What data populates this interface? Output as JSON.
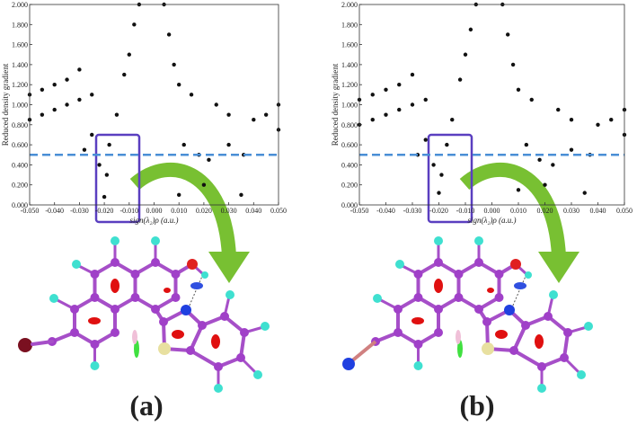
{
  "chart_data": [
    {
      "type": "scatter",
      "ylabel": "Reduced density gradient",
      "xlabel": "sign(λ₂)ρ (a.u.)",
      "color": "#111111",
      "xlim": [
        -0.05,
        0.05
      ],
      "ylim": [
        0,
        2
      ],
      "reference_line": 0.5,
      "reference_color": "#4a8fd6",
      "xticks": [
        {
          "value": -0.05,
          "label": "-0.050"
        },
        {
          "value": -0.04,
          "label": "-0.040"
        },
        {
          "value": -0.03,
          "label": "-0.030"
        },
        {
          "value": -0.02,
          "label": "-0.020"
        },
        {
          "value": -0.01,
          "label": "-0.010"
        },
        {
          "value": 0,
          "label": "0.000"
        },
        {
          "value": 0.01,
          "label": "0.010"
        },
        {
          "value": 0.02,
          "label": "0.020"
        },
        {
          "value": 0.03,
          "label": "0.030"
        },
        {
          "value": 0.04,
          "label": "0.040"
        },
        {
          "value": 0.05,
          "label": "0.050"
        }
      ],
      "yticks": [
        {
          "value": 0,
          "label": "0.000"
        },
        {
          "value": 0.2,
          "label": "0.200"
        },
        {
          "value": 0.4,
          "label": "0.400"
        },
        {
          "value": 0.6,
          "label": "0.600"
        },
        {
          "value": 0.8,
          "label": "0.800"
        },
        {
          "value": 1,
          "label": "1.000"
        },
        {
          "value": 1.2,
          "label": "1.200"
        },
        {
          "value": 1.4,
          "label": "1.400"
        },
        {
          "value": 1.6,
          "label": "1.600"
        },
        {
          "value": 1.8,
          "label": "1.800"
        },
        {
          "value": 2,
          "label": "2.000"
        }
      ],
      "x": [
        -0.05,
        -0.05,
        -0.045,
        -0.045,
        -0.04,
        -0.04,
        -0.035,
        -0.035,
        -0.03,
        -0.03,
        -0.025,
        -0.025,
        -0.022,
        -0.02,
        -0.019,
        -0.018,
        -0.015,
        -0.012,
        -0.01,
        -0.008,
        -0.006,
        0.004,
        0.006,
        0.008,
        0.01,
        0.01,
        0.012,
        0.015,
        0.018,
        0.02,
        0.022,
        0.025,
        0.03,
        0.035,
        0.036,
        0.04,
        0.045,
        0.05,
        0.05,
        -0.028,
        0.03
      ],
      "values": [
        0.85,
        1.1,
        0.9,
        1.15,
        0.95,
        1.2,
        1.0,
        1.25,
        1.05,
        1.35,
        1.1,
        0.7,
        0.4,
        0.08,
        0.3,
        0.6,
        0.9,
        1.3,
        1.5,
        1.8,
        2.0,
        2.0,
        1.7,
        1.4,
        0.1,
        1.2,
        0.6,
        1.1,
        0.5,
        0.2,
        0.45,
        1.0,
        0.9,
        0.1,
        0.5,
        0.85,
        0.9,
        0.75,
        1.0,
        0.55,
        0.6
      ]
    },
    {
      "type": "scatter",
      "ylabel": "Reduced density gradient",
      "xlabel": "sign(λ₂)ρ (a.u.)",
      "color": "#111111",
      "xlim": [
        -0.05,
        0.05
      ],
      "ylim": [
        0,
        2
      ],
      "reference_line": 0.5,
      "reference_color": "#4a8fd6",
      "xticks": [
        {
          "value": -0.05,
          "label": "-0.050"
        },
        {
          "value": -0.04,
          "label": "-0.040"
        },
        {
          "value": -0.03,
          "label": "-0.030"
        },
        {
          "value": -0.02,
          "label": "-0.020"
        },
        {
          "value": -0.01,
          "label": "-0.010"
        },
        {
          "value": 0,
          "label": "0.000"
        },
        {
          "value": 0.01,
          "label": "0.010"
        },
        {
          "value": 0.02,
          "label": "0.020"
        },
        {
          "value": 0.03,
          "label": "0.030"
        },
        {
          "value": 0.04,
          "label": "0.040"
        },
        {
          "value": 0.05,
          "label": "0.050"
        }
      ],
      "yticks": [
        {
          "value": 0,
          "label": "0.000"
        },
        {
          "value": 0.2,
          "label": "0.200"
        },
        {
          "value": 0.4,
          "label": "0.400"
        },
        {
          "value": 0.6,
          "label": "0.600"
        },
        {
          "value": 0.8,
          "label": "0.800"
        },
        {
          "value": 1,
          "label": "1.000"
        },
        {
          "value": 1.2,
          "label": "1.200"
        },
        {
          "value": 1.4,
          "label": "1.400"
        },
        {
          "value": 1.6,
          "label": "1.600"
        },
        {
          "value": 1.8,
          "label": "1.800"
        },
        {
          "value": 2,
          "label": "2.000"
        }
      ],
      "x": [
        -0.05,
        -0.05,
        -0.045,
        -0.045,
        -0.04,
        -0.04,
        -0.035,
        -0.035,
        -0.03,
        -0.03,
        -0.025,
        -0.025,
        -0.022,
        -0.02,
        -0.019,
        -0.017,
        -0.015,
        -0.012,
        -0.01,
        -0.008,
        -0.006,
        0.004,
        0.006,
        0.008,
        0.01,
        0.01,
        0.013,
        0.015,
        0.018,
        0.02,
        0.023,
        0.025,
        0.03,
        0.035,
        0.037,
        0.04,
        0.045,
        0.05,
        0.05,
        -0.028,
        0.03
      ],
      "values": [
        0.8,
        1.05,
        0.85,
        1.1,
        0.9,
        1.15,
        0.95,
        1.2,
        1.0,
        1.3,
        1.05,
        0.65,
        0.4,
        0.12,
        0.3,
        0.6,
        0.85,
        1.25,
        1.5,
        1.75,
        2.0,
        2.0,
        1.7,
        1.4,
        0.15,
        1.15,
        0.6,
        1.05,
        0.45,
        0.2,
        0.4,
        0.95,
        0.85,
        0.12,
        0.5,
        0.8,
        0.85,
        0.7,
        0.95,
        0.5,
        0.55
      ]
    }
  ],
  "panel_labels": [
    "(a)",
    "(b)"
  ]
}
